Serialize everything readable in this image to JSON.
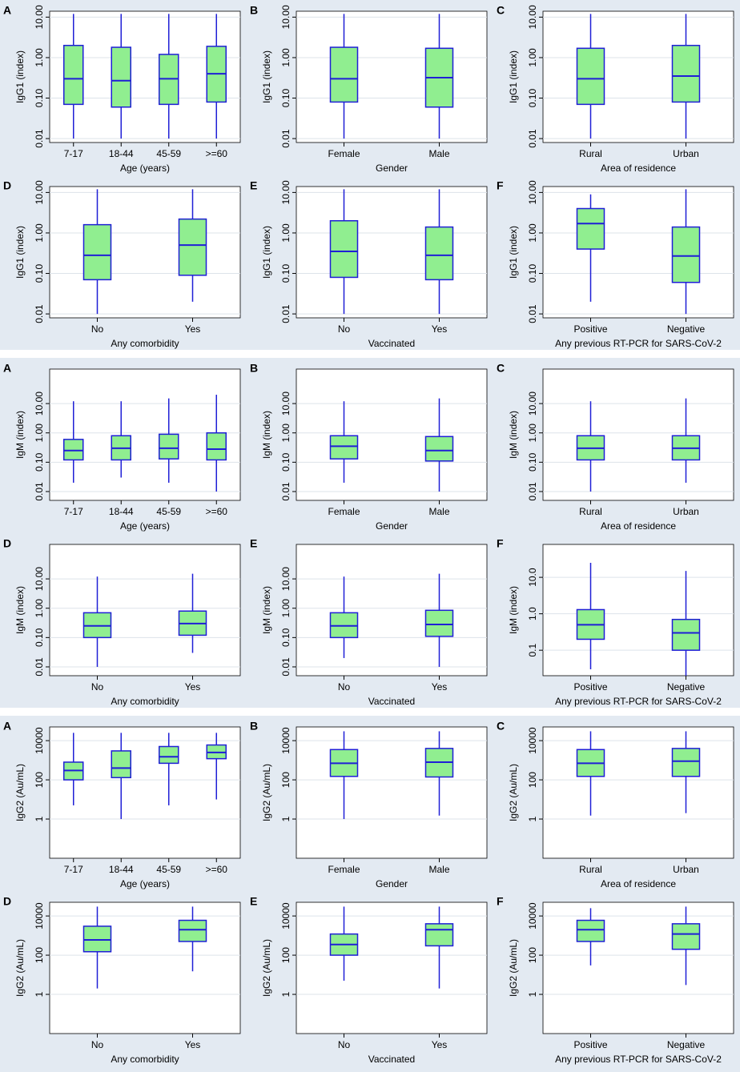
{
  "chart_data": [
    {
      "type": "box",
      "panel": "A",
      "ylabel": "IgG1 (index)",
      "xlabel": "Age (years)",
      "categories": [
        "7-17",
        "18-44",
        "45-59",
        ">=60"
      ],
      "whisker_low": [
        0.01,
        0.01,
        0.01,
        0.01
      ],
      "q1": [
        0.07,
        0.06,
        0.07,
        0.08
      ],
      "median": [
        0.3,
        0.27,
        0.3,
        0.4
      ],
      "q3": [
        2.0,
        1.8,
        1.2,
        1.9
      ],
      "whisker_high": [
        12,
        12,
        12,
        12
      ],
      "log": true,
      "ylim": [
        0.008,
        14
      ],
      "yticks": [
        0.01,
        {
          "value": 0.1,
          "label": "0.10"
        },
        {
          "value": 1,
          "label": "1.00"
        },
        {
          "value": 10,
          "label": "10.00"
        }
      ],
      "grid": true,
      "color": "#90ee90",
      "line_color": "#1f1fd6"
    },
    {
      "type": "box",
      "panel": "B",
      "ylabel": "IgG1 (index)",
      "xlabel": "Gender",
      "categories": [
        "Female",
        "Male"
      ],
      "whisker_low": [
        0.01,
        0.01
      ],
      "q1": [
        0.08,
        0.06
      ],
      "median": [
        0.3,
        0.32
      ],
      "q3": [
        1.8,
        1.7
      ],
      "whisker_high": [
        12,
        12
      ],
      "log": true,
      "ylim": [
        0.008,
        14
      ],
      "yticks": [
        0.01,
        {
          "value": 0.1,
          "label": "0.10"
        },
        {
          "value": 1,
          "label": "1.00"
        },
        {
          "value": 10,
          "label": "10.00"
        }
      ],
      "grid": true,
      "color": "#90ee90",
      "line_color": "#1f1fd6"
    },
    {
      "type": "box",
      "panel": "C",
      "ylabel": "IgG1 (index)",
      "xlabel": "Area of residence",
      "categories": [
        "Rural",
        "Urban"
      ],
      "whisker_low": [
        0.01,
        0.01
      ],
      "q1": [
        0.07,
        0.08
      ],
      "median": [
        0.3,
        0.35
      ],
      "q3": [
        1.7,
        2.0
      ],
      "whisker_high": [
        12,
        12
      ],
      "log": true,
      "ylim": [
        0.008,
        14
      ],
      "yticks": [
        0.01,
        {
          "value": 0.1,
          "label": "0.10"
        },
        {
          "value": 1,
          "label": "1.00"
        },
        {
          "value": 10,
          "label": "10.00"
        }
      ],
      "grid": true,
      "color": "#90ee90",
      "line_color": "#1f1fd6"
    },
    {
      "type": "box",
      "panel": "D",
      "ylabel": "IgG1 (index)",
      "xlabel": "Any comorbidity",
      "categories": [
        "No",
        "Yes"
      ],
      "whisker_low": [
        0.01,
        0.02
      ],
      "q1": [
        0.07,
        0.09
      ],
      "median": [
        0.28,
        0.5
      ],
      "q3": [
        1.6,
        2.2
      ],
      "whisker_high": [
        12,
        12
      ],
      "log": true,
      "ylim": [
        0.008,
        14
      ],
      "yticks": [
        0.01,
        {
          "value": 0.1,
          "label": "0.10"
        },
        {
          "value": 1,
          "label": "1.00"
        },
        {
          "value": 10,
          "label": "10.00"
        }
      ],
      "grid": true,
      "color": "#90ee90",
      "line_color": "#1f1fd6"
    },
    {
      "type": "box",
      "panel": "E",
      "ylabel": "IgG1 (index)",
      "xlabel": "Vaccinated",
      "categories": [
        "No",
        "Yes"
      ],
      "whisker_low": [
        0.01,
        0.01
      ],
      "q1": [
        0.08,
        0.07
      ],
      "median": [
        0.35,
        0.28
      ],
      "q3": [
        2.0,
        1.4
      ],
      "whisker_high": [
        12,
        12
      ],
      "log": true,
      "ylim": [
        0.008,
        14
      ],
      "yticks": [
        0.01,
        {
          "value": 0.1,
          "label": "0.10"
        },
        {
          "value": 1,
          "label": "1.00"
        },
        {
          "value": 10,
          "label": "10.00"
        }
      ],
      "grid": true,
      "color": "#90ee90",
      "line_color": "#1f1fd6"
    },
    {
      "type": "box",
      "panel": "F",
      "ylabel": "IgG1 (index)",
      "xlabel": "Any previous RT-PCR for SARS-CoV-2",
      "categories": [
        "Positive",
        "Negative"
      ],
      "whisker_low": [
        0.02,
        0.01
      ],
      "q1": [
        0.4,
        0.06
      ],
      "median": [
        1.7,
        0.27
      ],
      "q3": [
        4,
        1.4
      ],
      "whisker_high": [
        9,
        12
      ],
      "log": true,
      "ylim": [
        0.008,
        14
      ],
      "yticks": [
        0.01,
        {
          "value": 0.1,
          "label": "0.10"
        },
        {
          "value": 1,
          "label": "1.00"
        },
        {
          "value": 10,
          "label": "10.00"
        }
      ],
      "grid": true,
      "color": "#90ee90",
      "line_color": "#1f1fd6"
    },
    {
      "type": "box",
      "panel": "A",
      "ylabel": "IgM (index)",
      "xlabel": "Age (years)",
      "categories": [
        "7-17",
        "18-44",
        "45-59",
        ">=60"
      ],
      "whisker_low": [
        0.02,
        0.03,
        0.02,
        0.01
      ],
      "q1": [
        0.12,
        0.12,
        0.13,
        0.12
      ],
      "median": [
        0.25,
        0.3,
        0.3,
        0.28
      ],
      "q3": [
        0.6,
        0.8,
        0.9,
        1.0
      ],
      "whisker_high": [
        12,
        12,
        15,
        20
      ],
      "log": true,
      "ylim": [
        0.005,
        150
      ],
      "yticks": [
        0.01,
        {
          "value": 0.1,
          "label": "0.10"
        },
        {
          "value": 1,
          "label": "1.00"
        },
        {
          "value": 10,
          "label": "10.00"
        }
      ],
      "grid": true,
      "color": "#90ee90",
      "line_color": "#1f1fd6"
    },
    {
      "type": "box",
      "panel": "B",
      "ylabel": "IgM (index)",
      "xlabel": "Gender",
      "categories": [
        "Female",
        "Male"
      ],
      "whisker_low": [
        0.02,
        0.01
      ],
      "q1": [
        0.13,
        0.11
      ],
      "median": [
        0.35,
        0.25
      ],
      "q3": [
        0.8,
        0.75
      ],
      "whisker_high": [
        12,
        15
      ],
      "log": true,
      "ylim": [
        0.005,
        150
      ],
      "yticks": [
        0.01,
        {
          "value": 0.1,
          "label": "0.10"
        },
        {
          "value": 1,
          "label": "1.00"
        },
        {
          "value": 10,
          "label": "10.00"
        }
      ],
      "grid": true,
      "color": "#90ee90",
      "line_color": "#1f1fd6"
    },
    {
      "type": "box",
      "panel": "C",
      "ylabel": "IgM (index)",
      "xlabel": "Area of residence",
      "categories": [
        "Rural",
        "Urban"
      ],
      "whisker_low": [
        0.01,
        0.02
      ],
      "q1": [
        0.12,
        0.12
      ],
      "median": [
        0.3,
        0.3
      ],
      "q3": [
        0.8,
        0.8
      ],
      "whisker_high": [
        12,
        15
      ],
      "log": true,
      "ylim": [
        0.005,
        150
      ],
      "yticks": [
        0.01,
        {
          "value": 0.1,
          "label": "0.10"
        },
        {
          "value": 1,
          "label": "1.00"
        },
        {
          "value": 10,
          "label": "10.00"
        }
      ],
      "grid": true,
      "color": "#90ee90",
      "line_color": "#1f1fd6"
    },
    {
      "type": "box",
      "panel": "D",
      "ylabel": "IgM (index)",
      "xlabel": "Any comorbidity",
      "categories": [
        "No",
        "Yes"
      ],
      "whisker_low": [
        0.01,
        0.03
      ],
      "q1": [
        0.1,
        0.12
      ],
      "median": [
        0.25,
        0.3
      ],
      "q3": [
        0.7,
        0.8
      ],
      "whisker_high": [
        12,
        15
      ],
      "log": true,
      "ylim": [
        0.005,
        150
      ],
      "yticks": [
        0.01,
        {
          "value": 0.1,
          "label": "0.10"
        },
        {
          "value": 1,
          "label": "1.00"
        },
        {
          "value": 10,
          "label": "10.00"
        }
      ],
      "grid": true,
      "color": "#90ee90",
      "line_color": "#1f1fd6"
    },
    {
      "type": "box",
      "panel": "E",
      "ylabel": "IgM (index)",
      "xlabel": "Vaccinated",
      "categories": [
        "No",
        "Yes"
      ],
      "whisker_low": [
        0.02,
        0.01
      ],
      "q1": [
        0.1,
        0.11
      ],
      "median": [
        0.25,
        0.28
      ],
      "q3": [
        0.7,
        0.85
      ],
      "whisker_high": [
        12,
        15
      ],
      "log": true,
      "ylim": [
        0.005,
        150
      ],
      "yticks": [
        0.01,
        {
          "value": 0.1,
          "label": "0.10"
        },
        {
          "value": 1,
          "label": "1.00"
        },
        {
          "value": 10,
          "label": "10.00"
        }
      ],
      "grid": true,
      "color": "#90ee90",
      "line_color": "#1f1fd6"
    },
    {
      "type": "box",
      "panel": "F",
      "ylabel": "IgM (index)",
      "xlabel": "Any previous RT-PCR for SARS-CoV-2",
      "categories": [
        "Positive",
        "Negative"
      ],
      "whisker_low": [
        0.03,
        0.02
      ],
      "q1": [
        0.2,
        0.1
      ],
      "median": [
        0.5,
        0.3
      ],
      "q3": [
        1.3,
        0.7
      ],
      "whisker_high": [
        25,
        15
      ],
      "log": true,
      "ylim": [
        0.02,
        80
      ],
      "yticks": [
        0.1,
        {
          "value": 1,
          "label": "1.0"
        },
        {
          "value": 10,
          "label": "10.0"
        }
      ],
      "grid": true,
      "color": "#90ee90",
      "line_color": "#1f1fd6"
    },
    {
      "type": "box",
      "panel": "A",
      "ylabel": "IgG2 (Au/mL)",
      "xlabel": "Age (years)",
      "categories": [
        "7-17",
        "18-44",
        "45-59",
        ">=60"
      ],
      "whisker_low": [
        5,
        1,
        5,
        10
      ],
      "q1": [
        100,
        130,
        700,
        1200
      ],
      "median": [
        300,
        400,
        1500,
        2500
      ],
      "q3": [
        800,
        3000,
        5000,
        6000
      ],
      "whisker_high": [
        25000,
        25000,
        25000,
        25000
      ],
      "log": true,
      "ylim": [
        0.01,
        50000
      ],
      "yticks": [
        1,
        100,
        10000
      ],
      "grid": true,
      "color": "#90ee90",
      "line_color": "#1f1fd6"
    },
    {
      "type": "box",
      "panel": "B",
      "ylabel": "IgG2 (Au/mL)",
      "xlabel": "Gender",
      "categories": [
        "Female",
        "Male"
      ],
      "whisker_low": [
        1,
        1.5
      ],
      "q1": [
        150,
        140
      ],
      "median": [
        700,
        800
      ],
      "q3": [
        3500,
        4000
      ],
      "whisker_high": [
        30000,
        30000
      ],
      "log": true,
      "ylim": [
        0.01,
        50000
      ],
      "yticks": [
        1,
        100,
        10000
      ],
      "grid": true,
      "color": "#90ee90",
      "line_color": "#1f1fd6"
    },
    {
      "type": "box",
      "panel": "C",
      "ylabel": "IgG2 (Au/mL)",
      "xlabel": "Area of residence",
      "categories": [
        "Rural",
        "Urban"
      ],
      "whisker_low": [
        1.5,
        2
      ],
      "q1": [
        150,
        150
      ],
      "median": [
        700,
        900
      ],
      "q3": [
        3500,
        4000
      ],
      "whisker_high": [
        30000,
        30000
      ],
      "log": true,
      "ylim": [
        0.01,
        50000
      ],
      "yticks": [
        1,
        100,
        10000
      ],
      "grid": true,
      "color": "#90ee90",
      "line_color": "#1f1fd6"
    },
    {
      "type": "box",
      "panel": "D",
      "ylabel": "IgG2 (Au/mL)",
      "xlabel": "Any comorbidity",
      "categories": [
        "No",
        "Yes"
      ],
      "whisker_low": [
        2,
        15
      ],
      "q1": [
        150,
        500
      ],
      "median": [
        600,
        2000
      ],
      "q3": [
        3000,
        6000
      ],
      "whisker_high": [
        30000,
        30000
      ],
      "log": true,
      "ylim": [
        0.01,
        50000
      ],
      "yticks": [
        1,
        100,
        10000
      ],
      "grid": true,
      "color": "#90ee90",
      "line_color": "#1f1fd6"
    },
    {
      "type": "box",
      "panel": "E",
      "ylabel": "IgG2 (Au/mL)",
      "xlabel": "Vaccinated",
      "categories": [
        "No",
        "Yes"
      ],
      "whisker_low": [
        5,
        2
      ],
      "q1": [
        100,
        300
      ],
      "median": [
        350,
        2000
      ],
      "q3": [
        1200,
        4000
      ],
      "whisker_high": [
        30000,
        30000
      ],
      "log": true,
      "ylim": [
        0.01,
        50000
      ],
      "yticks": [
        1,
        100,
        10000
      ],
      "grid": true,
      "color": "#90ee90",
      "line_color": "#1f1fd6"
    },
    {
      "type": "box",
      "panel": "F",
      "ylabel": "IgG2 (Au/mL)",
      "xlabel": "Any previous RT-PCR for SARS-CoV-2",
      "categories": [
        "Positive",
        "Negative"
      ],
      "whisker_low": [
        30,
        3
      ],
      "q1": [
        500,
        200
      ],
      "median": [
        2000,
        1200
      ],
      "q3": [
        6000,
        4000
      ],
      "whisker_high": [
        25000,
        30000
      ],
      "log": true,
      "ylim": [
        0.01,
        50000
      ],
      "yticks": [
        1,
        100,
        10000
      ],
      "grid": true,
      "color": "#90ee90",
      "line_color": "#1f1fd6"
    }
  ]
}
